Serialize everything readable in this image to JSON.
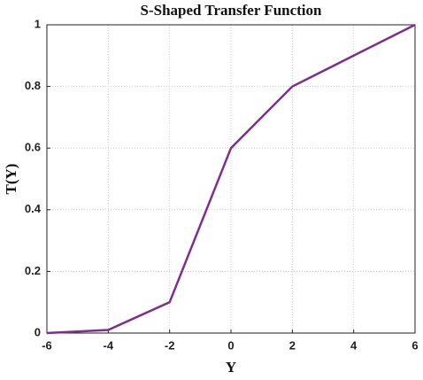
{
  "chart_data": {
    "type": "line",
    "title": "S-Shaped Transfer Function",
    "x_label": "Y",
    "y_label": "T(Y)",
    "x": [
      -6,
      -4,
      -2,
      0,
      2,
      4,
      6
    ],
    "series": [
      {
        "color": "#7e2f8e",
        "values": [
          0,
          0.01,
          0.1,
          0.6,
          0.8,
          0.9,
          1
        ]
      }
    ],
    "xlim": [
      -6,
      6
    ],
    "ylim": [
      0,
      1
    ],
    "xticks": [
      -6,
      -4,
      -2,
      0,
      2,
      4,
      6
    ],
    "yticks": [
      0,
      0.2,
      0.4,
      0.6,
      0.8,
      1
    ],
    "grid": true
  }
}
